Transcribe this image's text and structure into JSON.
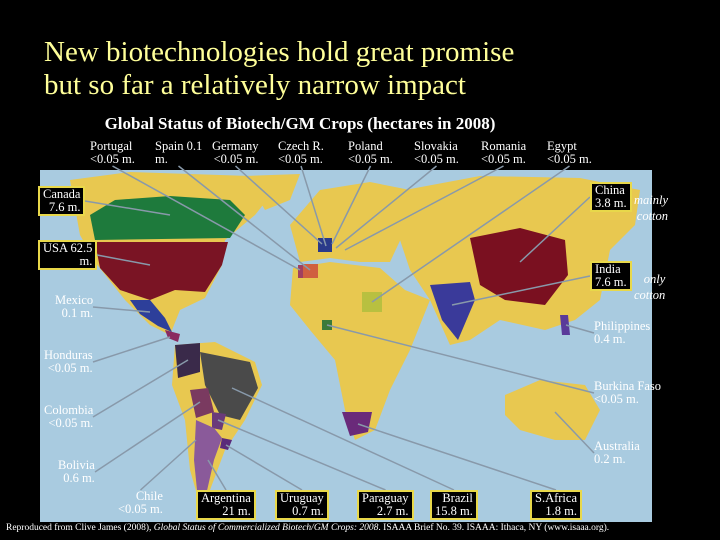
{
  "header": {
    "title": [
      "New biotechnologies hold great promise",
      "but so far a relatively narrow impact"
    ],
    "subtitle": "Global Status of Biotech/GM Crops (hectares in 2008)"
  },
  "labels": [
    {
      "name": "Portugal",
      "value": "<0.05 m."
    },
    {
      "name": "Spain 0.1",
      "value": "m."
    },
    {
      "name": "Germany",
      "value": "<0.05 m."
    },
    {
      "name": "Czech R.",
      "value": "<0.05 m."
    },
    {
      "name": "Poland",
      "value": "<0.05 m."
    },
    {
      "name": "Slovakia",
      "value": "<0.05 m."
    },
    {
      "name": "Romania",
      "value": "<0.05 m."
    },
    {
      "name": "Egypt",
      "value": "<0.05 m."
    },
    {
      "name": "Canada",
      "value": "7.6 m."
    },
    {
      "name": "USA 62.5",
      "value": "m."
    },
    {
      "name": "Mexico",
      "value": "0.1 m."
    },
    {
      "name": "Honduras",
      "value": "<0.05 m."
    },
    {
      "name": "Colombia",
      "value": "<0.05 m."
    },
    {
      "name": "Bolivia",
      "value": "0.6 m."
    },
    {
      "name": "Chile",
      "value": "<0.05 m."
    },
    {
      "name": "Argentina",
      "value": "21 m."
    },
    {
      "name": "Uruguay",
      "value": "0.7 m."
    },
    {
      "name": "Paraguay",
      "value": "2.7 m."
    },
    {
      "name": "Brazil",
      "value": "15.8 m."
    },
    {
      "name": "S.Africa",
      "value": "1.8 m."
    },
    {
      "name": "China",
      "value": "3.8 m.",
      "note": [
        "mainly",
        "cotton"
      ]
    },
    {
      "name": "India",
      "value": "7.6 m.",
      "note": [
        "only",
        "cotton"
      ]
    },
    {
      "name": "Philippines",
      "value": "0.4 m."
    },
    {
      "name": "Burkina Faso",
      "value": "<0.05 m."
    },
    {
      "name": "Australia",
      "value": "0.2 m."
    }
  ],
  "footer": [
    "Reproduced from Clive James (2008), ",
    "Global Status of Commercialized Biotech/GM Crops: 2008",
    ". ISAAA Brief No. 39. ISAAA: Ithaca, NY (www.isaaa.org)."
  ]
}
